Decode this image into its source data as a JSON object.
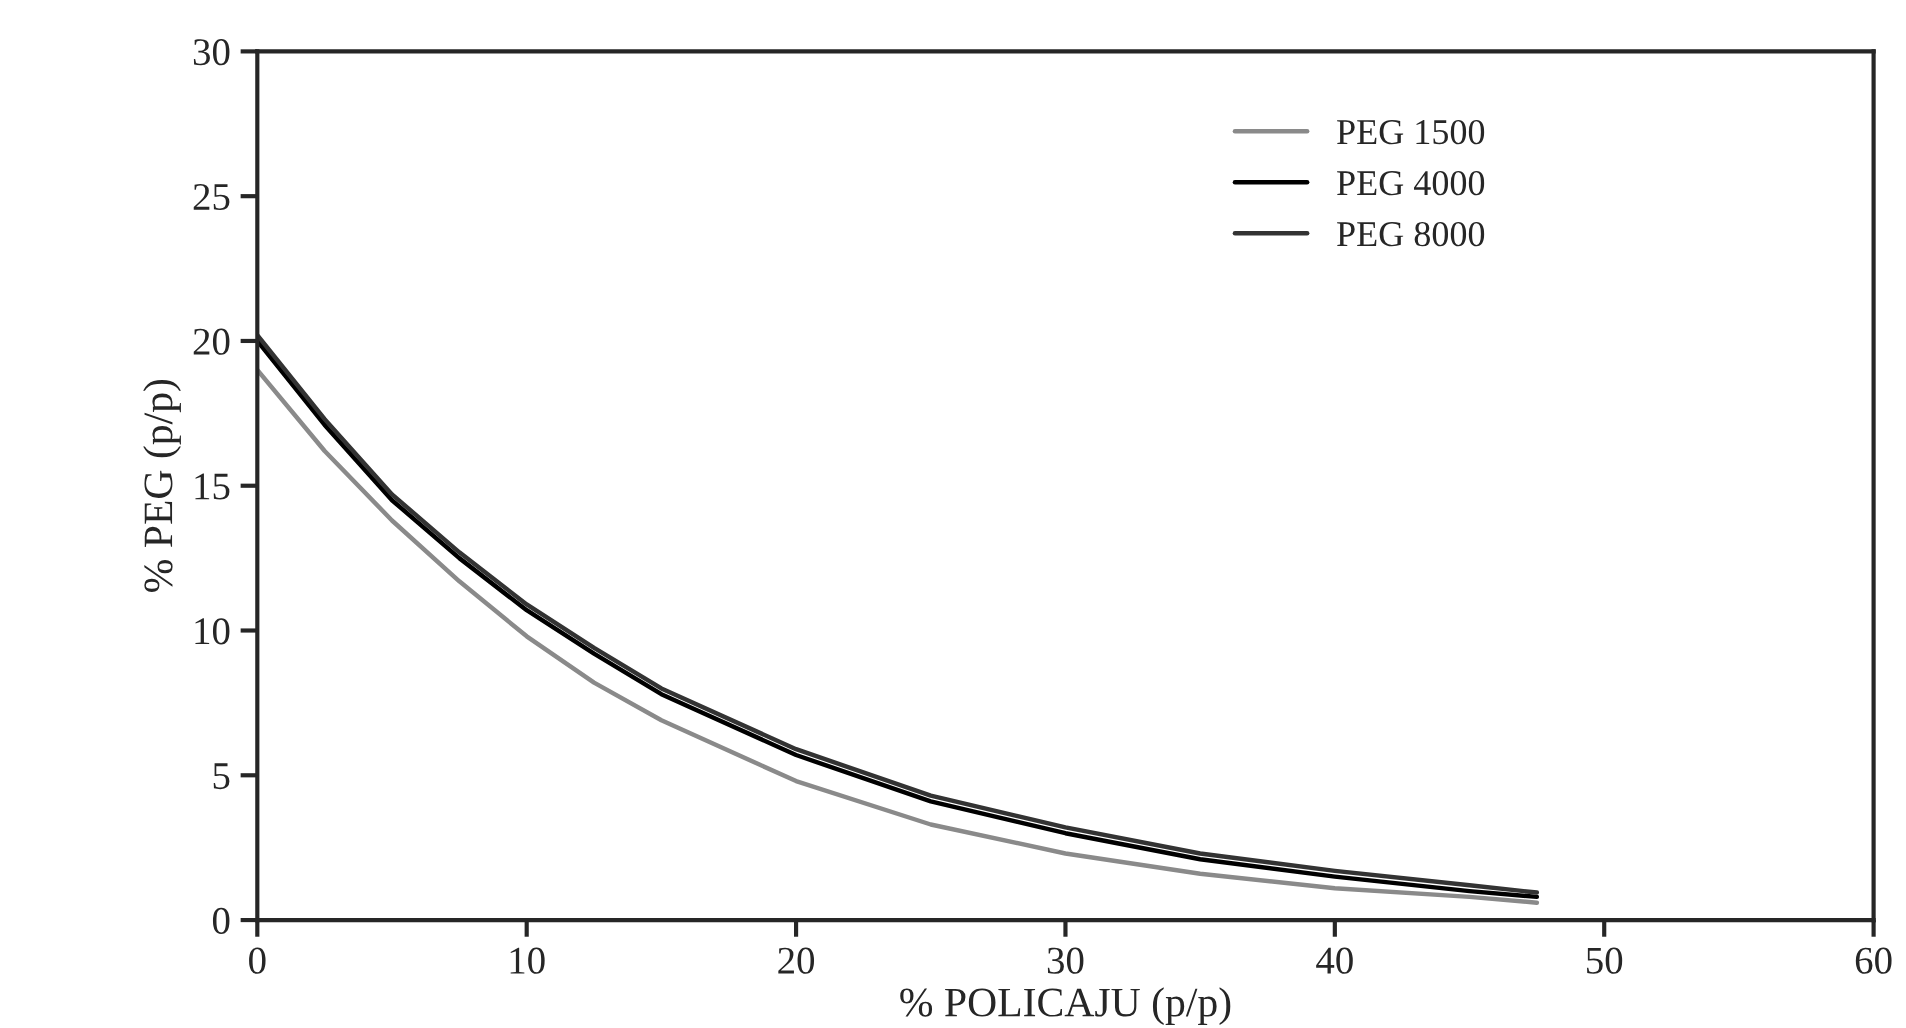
{
  "chart_data": {
    "type": "line",
    "xlabel": "% POLICAJU (p/p)",
    "ylabel": "% PEG (p/p)",
    "x": [
      0,
      2.5,
      5,
      7.5,
      10,
      12.5,
      15,
      20,
      25,
      30,
      35,
      40,
      45,
      47.5
    ],
    "series": [
      {
        "name": "PEG 1500",
        "color": "#8a8a8a",
        "values": [
          19,
          16.2,
          13.8,
          11.7,
          9.8,
          8.2,
          6.9,
          4.8,
          3.3,
          2.3,
          1.6,
          1.1,
          0.8,
          0.6
        ]
      },
      {
        "name": "PEG 4000",
        "color": "#000000",
        "values": [
          20,
          17.1,
          14.5,
          12.5,
          10.7,
          9.2,
          7.8,
          5.7,
          4.1,
          3.0,
          2.1,
          1.5,
          1.0,
          0.8
        ]
      },
      {
        "name": "PEG 8000",
        "color": "#333333",
        "values": [
          20.2,
          17.3,
          14.7,
          12.7,
          10.9,
          9.4,
          8.0,
          5.9,
          4.3,
          3.2,
          2.3,
          1.7,
          1.2,
          0.95
        ]
      }
    ],
    "xlim": [
      0,
      60
    ],
    "xticks": [
      0,
      10,
      20,
      30,
      40,
      50,
      60
    ],
    "ylim": [
      0,
      30
    ],
    "yticks": [
      0,
      5,
      10,
      15,
      20,
      25,
      30
    ],
    "grid": false,
    "legend": "top right",
    "marker": "none",
    "line_style": "solid"
  }
}
